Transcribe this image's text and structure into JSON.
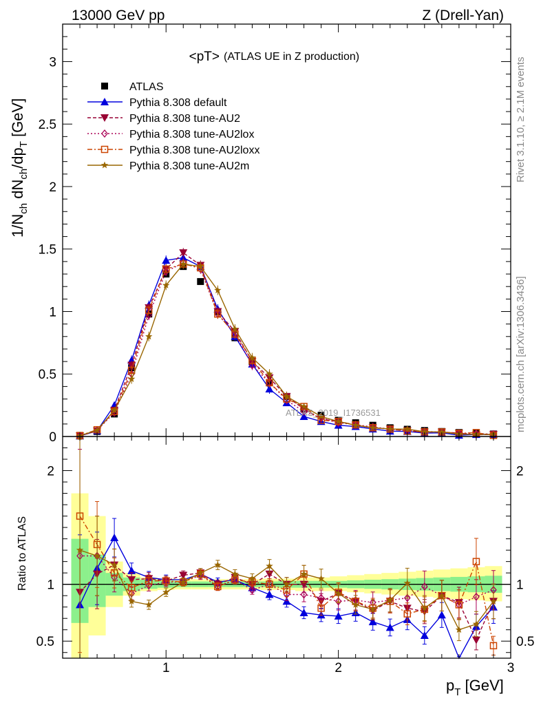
{
  "header": {
    "energy_label": "13000 GeV pp",
    "process_label": "Z (Drell-Yan)"
  },
  "side_labels": {
    "rivet": "Rivet 3.1.10, ≥ 2.1M events",
    "mcplots": "mcplots.cern.ch [arXiv:1306.3436]"
  },
  "watermark": "ATLAS_2019_I1736531",
  "colors": {
    "ATLAS": "#000000",
    "default": "#0000dd",
    "tune_AU2": "#990033",
    "tune_AU2lox": "#aa0055",
    "tune_AU2loxx": "#cc4400",
    "tune_AU2m": "#996600",
    "band_inner": "#8cf08c",
    "band_outer": "#ffff99"
  },
  "chart_data": [
    {
      "type": "line",
      "title": "<pT> (ATLAS UE in Z production)",
      "title_parts": {
        "main": "<pT>",
        "sub": "(ATLAS UE in Z production)"
      },
      "ylabel": "1/N_ch dN_ch/dp_T [GeV]",
      "xlim": [
        0.4,
        3.0
      ],
      "ylim": [
        0,
        3.3
      ],
      "yticks": [
        "0",
        "0.5",
        "1",
        "1.5",
        "2",
        "2.5",
        "3"
      ],
      "legend_position": "top-left",
      "x": [
        0.5,
        0.6,
        0.7,
        0.8,
        0.9,
        1.0,
        1.1,
        1.2,
        1.3,
        1.4,
        1.5,
        1.6,
        1.7,
        1.8,
        1.9,
        2.0,
        2.1,
        2.2,
        2.3,
        2.4,
        2.5,
        2.6,
        2.7,
        2.8,
        2.9
      ],
      "series": [
        {
          "name": "ATLAS",
          "key": "ATLAS",
          "marker": "square",
          "values": [
            0.005,
            0.04,
            0.18,
            0.55,
            0.98,
            1.3,
            1.36,
            1.24,
            1.0,
            0.79,
            0.6,
            0.43,
            0.32,
            0.22,
            0.17,
            0.13,
            0.11,
            0.09,
            0.07,
            0.058,
            0.048,
            0.04,
            0.032,
            0.026,
            0.02
          ]
        },
        {
          "name": "Pythia 8.308 default",
          "key": "default",
          "marker": "triangle",
          "dash": "",
          "values": [
            0.004,
            0.046,
            0.25,
            0.61,
            1.05,
            1.41,
            1.43,
            1.36,
            1.02,
            0.8,
            0.58,
            0.38,
            0.27,
            0.16,
            0.12,
            0.09,
            0.08,
            0.06,
            0.043,
            0.04,
            0.027,
            0.029,
            0.01,
            0.016,
            0.016
          ]
        },
        {
          "name": "Pythia 8.308 tune-AU2",
          "key": "tune_AU2",
          "marker": "triangle-down",
          "dash": "5,3",
          "values": [
            0.0047,
            0.044,
            0.21,
            0.57,
            1.03,
            1.34,
            1.47,
            1.37,
            1.0,
            0.84,
            0.6,
            0.47,
            0.32,
            0.22,
            0.14,
            0.12,
            0.09,
            0.07,
            0.06,
            0.046,
            0.036,
            0.036,
            0.027,
            0.013,
            0.017
          ]
        },
        {
          "name": "Pythia 8.308 tune-AU2lox",
          "key": "tune_AU2lox",
          "marker": "diamond",
          "dash": "2,3",
          "values": [
            0.006,
            0.05,
            0.19,
            0.5,
            0.97,
            1.32,
            1.39,
            1.34,
            0.98,
            0.82,
            0.57,
            0.43,
            0.29,
            0.2,
            0.15,
            0.11,
            0.095,
            0.076,
            0.06,
            0.051,
            0.04,
            0.036,
            0.026,
            0.023,
            0.019
          ]
        },
        {
          "name": "Pythia 8.308 tune-AU2loxx",
          "key": "tune_AU2loxx",
          "marker": "square-open",
          "dash": "7,3,2,3",
          "values": [
            0.008,
            0.054,
            0.2,
            0.53,
            1.01,
            1.34,
            1.38,
            1.35,
            0.98,
            0.82,
            0.61,
            0.43,
            0.3,
            0.24,
            0.13,
            0.12,
            0.093,
            0.07,
            0.059,
            0.043,
            0.037,
            0.036,
            0.026,
            0.031,
            0.009
          ]
        },
        {
          "name": "Pythia 8.308 tune-AU2m",
          "key": "tune_AU2m",
          "marker": "star",
          "dash": "",
          "values": [
            0.0065,
            0.05,
            0.21,
            0.46,
            0.8,
            1.21,
            1.38,
            1.36,
            1.17,
            0.86,
            0.63,
            0.5,
            0.32,
            0.24,
            0.16,
            0.12,
            0.09,
            0.07,
            0.06,
            0.059,
            0.038,
            0.036,
            0.019,
            0.017,
            0.017
          ]
        }
      ]
    },
    {
      "type": "line",
      "ylabel": "Ratio to ATLAS",
      "xlabel": "p_T [GeV]",
      "xlim": [
        0.4,
        3.0
      ],
      "ylim": [
        0.35,
        2.3
      ],
      "xticks": [
        "1",
        "2",
        "3"
      ],
      "yticks": [
        "0.5",
        "1",
        "2"
      ],
      "reference_line": 1,
      "x": [
        0.5,
        0.6,
        0.7,
        0.8,
        0.9,
        1.0,
        1.1,
        1.2,
        1.3,
        1.4,
        1.5,
        1.6,
        1.7,
        1.8,
        1.9,
        2.0,
        2.1,
        2.2,
        2.3,
        2.4,
        2.5,
        2.6,
        2.7,
        2.8,
        2.9
      ],
      "band_inner": [
        [
          0.66,
          1.4
        ],
        [
          0.8,
          1.26
        ],
        [
          0.9,
          1.1
        ],
        [
          0.94,
          1.06
        ],
        [
          0.96,
          1.04
        ],
        [
          0.97,
          1.03
        ],
        [
          0.975,
          1.025
        ],
        [
          0.975,
          1.025
        ],
        [
          0.975,
          1.025
        ],
        [
          0.975,
          1.025
        ],
        [
          0.975,
          1.025
        ],
        [
          0.975,
          1.025
        ],
        [
          0.97,
          1.03
        ],
        [
          0.97,
          1.03
        ],
        [
          0.97,
          1.03
        ],
        [
          0.97,
          1.03
        ],
        [
          0.965,
          1.035
        ],
        [
          0.96,
          1.04
        ],
        [
          0.955,
          1.045
        ],
        [
          0.95,
          1.05
        ],
        [
          0.945,
          1.055
        ],
        [
          0.94,
          1.06
        ],
        [
          0.935,
          1.065
        ],
        [
          0.93,
          1.07
        ],
        [
          0.925,
          1.075
        ]
      ],
      "band_outer": [
        [
          0.3,
          1.8
        ],
        [
          0.55,
          1.6
        ],
        [
          0.8,
          1.2
        ],
        [
          0.9,
          1.1
        ],
        [
          0.94,
          1.06
        ],
        [
          0.95,
          1.05
        ],
        [
          0.955,
          1.045
        ],
        [
          0.955,
          1.045
        ],
        [
          0.955,
          1.045
        ],
        [
          0.955,
          1.045
        ],
        [
          0.955,
          1.045
        ],
        [
          0.95,
          1.05
        ],
        [
          0.95,
          1.05
        ],
        [
          0.94,
          1.06
        ],
        [
          0.94,
          1.06
        ],
        [
          0.94,
          1.07
        ],
        [
          0.93,
          1.08
        ],
        [
          0.92,
          1.09
        ],
        [
          0.91,
          1.1
        ],
        [
          0.9,
          1.11
        ],
        [
          0.89,
          1.12
        ],
        [
          0.88,
          1.13
        ],
        [
          0.87,
          1.14
        ],
        [
          0.86,
          1.15
        ],
        [
          0.85,
          1.16
        ]
      ],
      "series": [
        {
          "key": "default",
          "values": [
            0.82,
            1.14,
            1.41,
            1.12,
            1.06,
            1.04,
            1.04,
            1.09,
            1.02,
            1.04,
            0.97,
            0.91,
            0.85,
            0.75,
            0.73,
            0.72,
            0.75,
            0.67,
            0.62,
            0.69,
            0.55,
            0.73,
            0.3,
            0.63,
            0.8
          ]
        },
        {
          "key": "tune_AU2",
          "values": [
            0.93,
            1.09,
            1.17,
            1.04,
            1.05,
            1.03,
            1.08,
            1.1,
            1.0,
            1.06,
            1.0,
            1.09,
            1.0,
            1.0,
            0.85,
            0.92,
            0.85,
            0.77,
            0.85,
            0.79,
            0.76,
            0.9,
            0.84,
            0.51,
            0.85
          ]
        },
        {
          "key": "tune_AU2lox",
          "values": [
            1.25,
            1.25,
            1.06,
            0.92,
            0.99,
            1.02,
            1.02,
            1.08,
            0.98,
            1.04,
            0.95,
            1.0,
            0.91,
            0.91,
            0.88,
            0.85,
            0.86,
            0.84,
            0.86,
            0.88,
            0.98,
            0.9,
            0.82,
            0.89,
            0.95
          ]
        },
        {
          "key": "tune_AU2loxx",
          "values": [
            1.6,
            1.35,
            1.1,
            0.97,
            1.03,
            1.03,
            1.02,
            1.09,
            0.98,
            1.04,
            1.02,
            1.0,
            0.95,
            1.09,
            0.79,
            0.93,
            0.85,
            0.79,
            0.85,
            0.74,
            0.78,
            0.9,
            0.82,
            1.2,
            0.46
          ]
        },
        {
          "key": "tune_AU2m",
          "values": [
            1.3,
            1.25,
            1.17,
            0.85,
            0.82,
            0.93,
            1.02,
            1.1,
            1.17,
            1.09,
            1.05,
            1.16,
            1.0,
            1.09,
            1.05,
            0.92,
            0.82,
            0.78,
            0.86,
            1.01,
            0.79,
            0.9,
            0.6,
            0.65,
            0.85
          ]
        }
      ]
    }
  ]
}
